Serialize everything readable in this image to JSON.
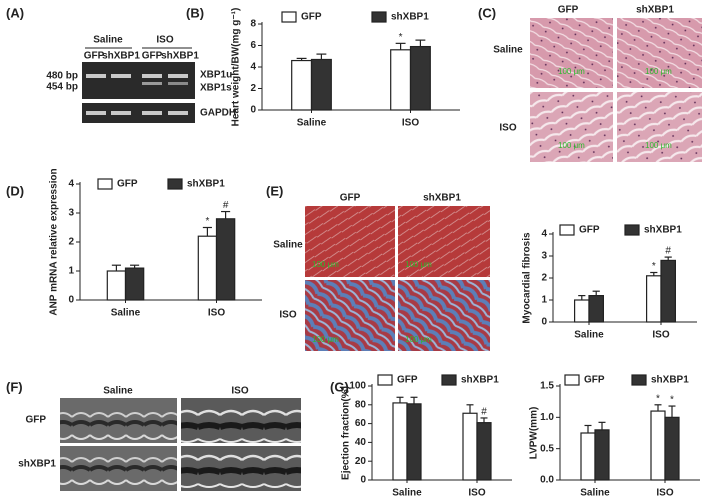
{
  "figure": {
    "panel_labels": [
      "(A)",
      "(B)",
      "(C)",
      "(D)",
      "(E)",
      "(F)",
      "(G)"
    ],
    "gel": {
      "groups": [
        "Saline",
        "ISO"
      ],
      "lanes": [
        "GFP",
        "shXBP1",
        "GFP",
        "shXBP1"
      ],
      "sizes": [
        "480 bp",
        "454 bp"
      ],
      "bands": [
        "XBP1u",
        "XBP1s",
        "GAPDH"
      ]
    },
    "histology": {
      "columns": [
        "GFP",
        "shXBP1"
      ],
      "rows": [
        "Saline",
        "ISO"
      ],
      "scale_bar": "100 μm"
    },
    "fibrosis": {
      "columns": [
        "GFP",
        "shXBP1"
      ],
      "rows": [
        "Saline",
        "ISO"
      ],
      "scale_bar": "100 μm"
    },
    "echo": {
      "columns": [
        "Saline",
        "ISO"
      ],
      "rows": [
        "GFP",
        "shXBP1"
      ]
    }
  },
  "chart_data": [
    {
      "type": "bar",
      "ylabel": "Heart weight/BW(mg g⁻¹)",
      "categories": [
        "Saline",
        "ISO"
      ],
      "series": [
        {
          "name": "GFP",
          "color": "#ffffff",
          "values": [
            4.6,
            5.6
          ],
          "errors": [
            0.2,
            0.6
          ],
          "markers": [
            null,
            "*"
          ]
        },
        {
          "name": "shXBP1",
          "color": "#333333",
          "values": [
            4.7,
            5.9
          ],
          "errors": [
            0.5,
            0.6
          ],
          "markers": [
            null,
            null
          ]
        }
      ],
      "ylim": [
        0,
        8
      ],
      "yticks": [
        0,
        2,
        4,
        6,
        8
      ]
    },
    {
      "type": "bar",
      "ylabel": "ANP mRNA relative expression",
      "categories": [
        "Saline",
        "ISO"
      ],
      "series": [
        {
          "name": "GFP",
          "color": "#ffffff",
          "values": [
            1.0,
            2.2
          ],
          "errors": [
            0.2,
            0.3
          ],
          "markers": [
            null,
            "*"
          ]
        },
        {
          "name": "shXBP1",
          "color": "#333333",
          "values": [
            1.1,
            2.8
          ],
          "errors": [
            0.1,
            0.25
          ],
          "markers": [
            null,
            "#"
          ]
        }
      ],
      "ylim": [
        0,
        4
      ],
      "yticks": [
        0,
        1,
        2,
        3,
        4
      ]
    },
    {
      "type": "bar",
      "ylabel": "Myocardial fibrosis",
      "categories": [
        "Saline",
        "ISO"
      ],
      "series": [
        {
          "name": "GFP",
          "color": "#ffffff",
          "values": [
            1.0,
            2.1
          ],
          "errors": [
            0.2,
            0.15
          ],
          "markers": [
            null,
            "*"
          ]
        },
        {
          "name": "shXBP1",
          "color": "#333333",
          "values": [
            1.2,
            2.8
          ],
          "errors": [
            0.2,
            0.15
          ],
          "markers": [
            null,
            "#"
          ]
        }
      ],
      "ylim": [
        0,
        4
      ],
      "yticks": [
        0,
        1,
        2,
        3,
        4
      ]
    },
    {
      "type": "bar",
      "ylabel": "Ejection fraction(%)",
      "categories": [
        "Saline",
        "ISO"
      ],
      "series": [
        {
          "name": "GFP",
          "color": "#ffffff",
          "values": [
            82,
            71
          ],
          "errors": [
            6,
            9
          ],
          "markers": [
            null,
            null
          ]
        },
        {
          "name": "shXBP1",
          "color": "#333333",
          "values": [
            81,
            61
          ],
          "errors": [
            7,
            5
          ],
          "markers": [
            null,
            "#"
          ]
        }
      ],
      "ylim": [
        0,
        100
      ],
      "yticks": [
        0,
        20,
        40,
        60,
        80,
        100
      ]
    },
    {
      "type": "bar",
      "ylabel": "LVPW(mm)",
      "categories": [
        "Saline",
        "ISO"
      ],
      "series": [
        {
          "name": "GFP",
          "color": "#ffffff",
          "values": [
            0.75,
            1.1
          ],
          "errors": [
            0.12,
            0.1
          ],
          "markers": [
            null,
            "*"
          ]
        },
        {
          "name": "shXBP1",
          "color": "#333333",
          "values": [
            0.8,
            1.0
          ],
          "errors": [
            0.12,
            0.18
          ],
          "markers": [
            null,
            "*"
          ]
        }
      ],
      "ylim": [
        0,
        1.5
      ],
      "yticks": [
        {
          "value": 0,
          "label": "0.0"
        },
        {
          "value": 0.5,
          "label": "0.5"
        },
        {
          "value": 1,
          "label": "1.0"
        },
        {
          "value": 1.5,
          "label": "1.5"
        }
      ]
    }
  ]
}
